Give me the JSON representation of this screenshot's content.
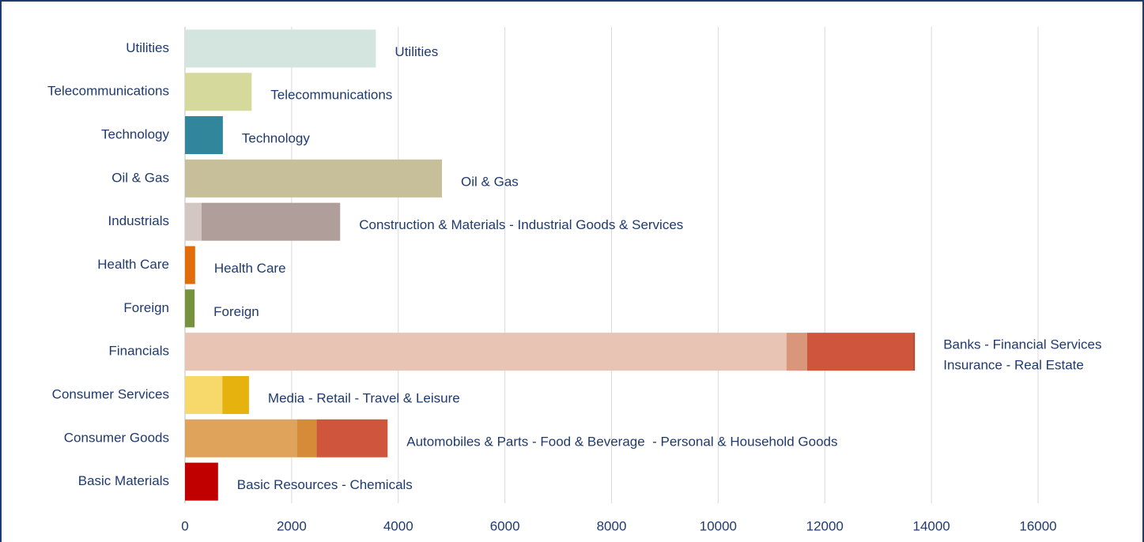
{
  "chart_data": {
    "type": "stacked-bar-horizontal",
    "categories": [
      "Utilities",
      "Telecommunications",
      "Technology",
      "Oil & Gas",
      "Industrials",
      "Health Care",
      "Foreign",
      "Financials",
      "Consumer Services",
      "Consumer Goods",
      "Basic Materials"
    ],
    "stacks": [
      {
        "values": [
          3580
        ],
        "colors": [
          "#d4e4de"
        ]
      },
      {
        "values": [
          1250
        ],
        "colors": [
          "#d5d99b"
        ]
      },
      {
        "values": [
          710
        ],
        "colors": [
          "#31869b"
        ]
      },
      {
        "values": [
          4820
        ],
        "colors": [
          "#c6bf9a"
        ]
      },
      {
        "values": [
          310,
          2600
        ],
        "colors": [
          "#d3c7c4",
          "#b09e9a"
        ]
      },
      {
        "values": [
          190
        ],
        "colors": [
          "#e36c0a"
        ]
      },
      {
        "values": [
          180
        ],
        "colors": [
          "#76923c"
        ]
      },
      {
        "values": [
          11280,
          390,
          1990,
          30
        ],
        "colors": [
          "#e8c4b4",
          "#d8977a",
          "#cf553d",
          "#a33f2a"
        ]
      },
      {
        "values": [
          700,
          500
        ],
        "colors": [
          "#f7d86a",
          "#e6b30e"
        ]
      },
      {
        "values": [
          2100,
          370,
          1330
        ],
        "colors": [
          "#dfa35c",
          "#d58b38",
          "#cf553d"
        ]
      },
      {
        "values": [
          620
        ],
        "colors": [
          "#c00000"
        ]
      }
    ],
    "annotations": [
      [
        "Utilities"
      ],
      [
        "Telecommunications"
      ],
      [
        "Technology"
      ],
      [
        "Oil & Gas"
      ],
      [
        "Construction & Materials - Industrial Goods & Services"
      ],
      [
        "Health Care"
      ],
      [
        "Foreign"
      ],
      [
        "Banks - Financial Services",
        "Insurance - Real Estate"
      ],
      [
        "Media - Retail - Travel & Leisure"
      ],
      [
        "Automobiles & Parts - Food & Beverage  - Personal & Household Goods"
      ],
      [
        "Basic Resources - Chemicals"
      ]
    ],
    "xlim": [
      0,
      16000
    ],
    "xticks": [
      0,
      2000,
      4000,
      6000,
      8000,
      10000,
      12000,
      14000,
      16000
    ],
    "grid": true
  }
}
